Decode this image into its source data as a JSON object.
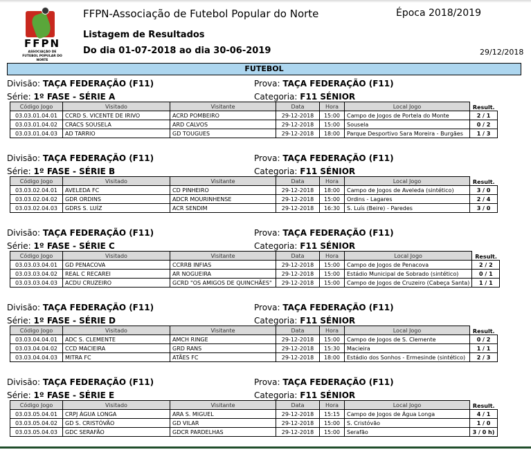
{
  "header": {
    "logo_text": "FFPN",
    "logo_subtext": "ASSOCIAÇÃO DE FUTEBOL POPULAR DO NORTE",
    "title": "FFPN-Associação de Futebol Popular do Norte",
    "season": "Época 2018/2019",
    "subtitle": "Listagem de Resultados",
    "period": "Do dia 01-07-2018 ao dia 30-06-2019",
    "print_date": "29/12/2018",
    "sport": "FUTEBOL"
  },
  "labels": {
    "divisao": "Divisão:",
    "serie": "Série:",
    "prova": "Prova:",
    "categoria": "Categoria:"
  },
  "columns": [
    "Código Jogo",
    "Visitado",
    "Visitante",
    "Data",
    "Hora",
    "Local Jogo",
    "Result."
  ],
  "sections": [
    {
      "divisao": "TAÇA FEDERAÇÃO (F11)",
      "serie": "1º FASE - SÉRIE A",
      "prova": "TAÇA FEDERAÇÃO (F11)",
      "categoria": "F11 SÉNIOR",
      "rows": [
        [
          "03.03.01.04.01",
          "CCRD S. VICENTE DE IRIVO",
          "ACRD POMBEIRO",
          "29-12-2018",
          "15:00",
          "Campo de Jogos de Portela do Monte",
          "2 / 1"
        ],
        [
          "03.03.01.04.02",
          "CRACS SOUSELA",
          "ARD CALVOS",
          "29-12-2018",
          "15:00",
          "Sousela",
          "0 / 2"
        ],
        [
          "03.03.01.04.03",
          "AD TARRIO",
          "GD TOUGUES",
          "29-12-2018",
          "18:00",
          "Parque Desportivo Sara Moreira - Burgães",
          "1 / 3"
        ]
      ]
    },
    {
      "divisao": "TAÇA FEDERAÇÃO (F11)",
      "serie": "1º FASE - SÉRIE B",
      "prova": "TAÇA FEDERAÇÃO (F11)",
      "categoria": "F11 SÉNIOR",
      "rows": [
        [
          "03.03.02.04.01",
          "AVELEDA FC",
          "CD PINHEIRO",
          "29-12-2018",
          "18:00",
          "Campo de Jogos de Aveleda (sintético)",
          "3 / 0"
        ],
        [
          "03.03.02.04.02",
          "GDR ORDINS",
          "ADCR MOURINHENSE",
          "29-12-2018",
          "15:00",
          "Ordins - Lagares",
          "2 / 4"
        ],
        [
          "03.03.02.04.03",
          "GDRS S. LUÍZ",
          "ACR SENDIM",
          "29-12-2018",
          "16:30",
          "S. Luís (Beire) - Paredes",
          "3 / 0"
        ]
      ]
    },
    {
      "divisao": "TAÇA FEDERAÇÃO (F11)",
      "serie": "1º FASE - SÉRIE C",
      "prova": "TAÇA FEDERAÇÃO (F11)",
      "categoria": "F11 SÉNIOR",
      "rows": [
        [
          "03.03.03.04.01",
          "GD PENACOVA",
          "CCRRB INFIAS",
          "29-12-2018",
          "15:00",
          "Campo de Jogos de Penacova",
          "2 / 2"
        ],
        [
          "03.03.03.04.02",
          "REAL C RECAREI",
          "AR NOGUEIRA",
          "29-12-2018",
          "15:00",
          "Estádio Municipal de Sobrado (sintético)",
          "0 / 1"
        ],
        [
          "03.03.03.04.03",
          "ACDU CRUZEIRO",
          "GCRD \"OS AMIGOS DE QUINCHÃES\"",
          "29-12-2018",
          "15:00",
          "Campo de Jogos de Cruzeiro (Cabeça Santa)",
          "1 / 1"
        ]
      ]
    },
    {
      "divisao": "TAÇA FEDERAÇÃO (F11)",
      "serie": "1º FASE - SÉRIE D",
      "prova": "TAÇA FEDERAÇÃO (F11)",
      "categoria": "F11 SÉNIOR",
      "rows": [
        [
          "03.03.04.04.01",
          "ADC S. CLEMENTE",
          "AMCH RINGE",
          "29-12-2018",
          "15:00",
          "Campo de Jogos de S. Clemente",
          "0 / 2"
        ],
        [
          "03.03.04.04.02",
          "CCD MACIEIRA",
          "GRD RANS",
          "29-12-2018",
          "15:30",
          "Macieira",
          "1 / 1"
        ],
        [
          "03.03.04.04.03",
          "MITRA FC",
          "ATÃES FC",
          "29-12-2018",
          "18:00",
          "Estádio dos Sonhos - Ermesinde (sintético)",
          "2 / 3"
        ]
      ]
    },
    {
      "divisao": "TAÇA FEDERAÇÃO (F11)",
      "serie": "1º FASE - SÉRIE E",
      "prova": "TAÇA FEDERAÇÃO (F11)",
      "categoria": "F11 SÉNIOR",
      "rows": [
        [
          "03.03.05.04.01",
          "CRPJ ÁGUA LONGA",
          "ARA S. MIGUEL",
          "29-12-2018",
          "15:15",
          "Campo de Jogos de Água Longa",
          "4 / 1"
        ],
        [
          "03.03.05.04.02",
          "GD S. CRISTÓVÃO",
          "GD VILAR",
          "29-12-2018",
          "15:00",
          "S. Cristóvão",
          "1 / 0"
        ],
        [
          "03.03.05.04.03",
          "GDC SERAFÃO",
          "GDCR PARDELHAS",
          "29-12-2018",
          "15:00",
          "Serafão",
          "3 / 0    h)"
        ]
      ]
    }
  ]
}
